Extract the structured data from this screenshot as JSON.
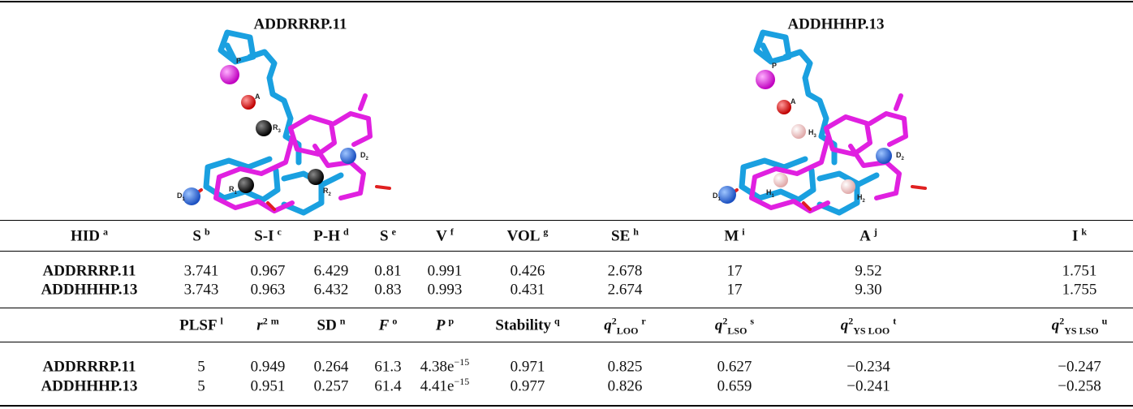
{
  "table": {
    "models": [
      "ADDRRRP.11",
      "ADDHHHP.13"
    ],
    "images": [
      {
        "labels": [
          {
            "text": "P"
          },
          {
            "text": "A"
          },
          {
            "text": "R",
            "sub": "3"
          },
          {
            "text": "D",
            "sub": "2"
          },
          {
            "text": "D",
            "sub": "1"
          },
          {
            "text": "R",
            "sub": "1"
          },
          {
            "text": "R",
            "sub": "2"
          }
        ]
      },
      {
        "labels": [
          {
            "text": "P"
          },
          {
            "text": "A"
          },
          {
            "text": "H",
            "sub": "3"
          },
          {
            "text": "D",
            "sub": "2"
          },
          {
            "text": "D",
            "sub": "1"
          },
          {
            "text": "H",
            "sub": "1"
          },
          {
            "text": "H",
            "sub": "2"
          }
        ]
      }
    ],
    "header1": [
      {
        "text": "HID",
        "note": "a"
      },
      {
        "text": "S",
        "note": "b"
      },
      {
        "text": "S-I",
        "note": "c"
      },
      {
        "text": "P-H",
        "note": "d"
      },
      {
        "text": "S",
        "note": "e"
      },
      {
        "text": "V",
        "note": "f"
      },
      {
        "text": "VOL",
        "note": "g"
      },
      {
        "text": "SE",
        "note": "h"
      },
      {
        "text": "M",
        "note": "i"
      },
      {
        "text": "A",
        "note": "j"
      },
      {
        "text": "I",
        "note": "k"
      }
    ],
    "rows1": [
      [
        "ADDRRRP.11",
        "3.741",
        "0.967",
        "6.429",
        "0.81",
        "0.991",
        "0.426",
        "2.678",
        "17",
        "9.52",
        "1.751"
      ],
      [
        "ADDHHHP.13",
        "3.743",
        "0.963",
        "6.432",
        "0.83",
        "0.993",
        "0.431",
        "2.674",
        "17",
        "9.30",
        "1.755"
      ]
    ],
    "header2": [
      {
        "text": "PLSF",
        "note": "l"
      },
      {
        "text": "r",
        "pow": "2",
        "note": "m",
        "italic": true
      },
      {
        "text": "SD",
        "note": "n"
      },
      {
        "text": "F",
        "note": "o",
        "italic": true
      },
      {
        "text": "P",
        "note": "p",
        "italic": true
      },
      {
        "text": "Stability",
        "note": "q"
      },
      {
        "text": "q",
        "pow": "2",
        "sub": "LOO",
        "note": "r",
        "italic": true
      },
      {
        "text": "q",
        "pow": "2",
        "sub": "LSO",
        "note": "s",
        "italic": true
      },
      {
        "text": "q",
        "pow": "2",
        "sub": "YS LOO",
        "note": "t",
        "italic": true
      },
      {
        "text": "q",
        "pow": "2",
        "sub": "YS LSO",
        "note": "u",
        "italic": true
      }
    ],
    "rows2": [
      [
        "ADDRRRP.11",
        "5",
        "0.949",
        "0.264",
        "61.3",
        {
          "text": "4.38e",
          "pow": "−15"
        },
        "0.971",
        "0.825",
        "0.627",
        "−0.234",
        "−0.247"
      ],
      [
        "ADDHHHP.13",
        "5",
        "0.951",
        "0.257",
        "61.4",
        {
          "text": "4.41e",
          "pow": "−15"
        },
        "0.977",
        "0.826",
        "0.659",
        "−0.241",
        "−0.258"
      ]
    ]
  }
}
